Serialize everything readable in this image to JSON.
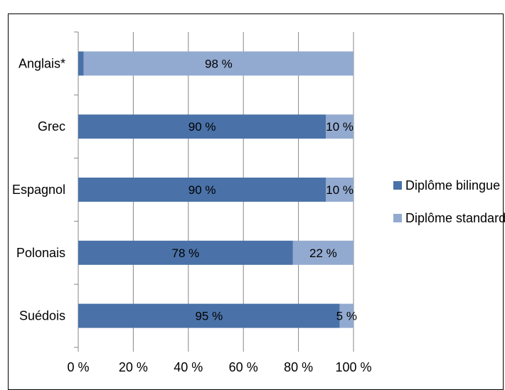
{
  "chart_data": {
    "type": "bar",
    "stacked": true,
    "orientation": "horizontal",
    "categories": [
      "Anglais*",
      "Grec",
      "Espagnol",
      "Polonais",
      "Suédois"
    ],
    "series": [
      {
        "name": "Diplôme bilingue",
        "color": "#4a72a8",
        "values": [
          2,
          90,
          90,
          78,
          95
        ],
        "labels": [
          "",
          "90 %",
          "90 %",
          "78 %",
          "95 %"
        ]
      },
      {
        "name": "Diplôme standard",
        "color": "#93aad0",
        "values": [
          98,
          10,
          10,
          22,
          5
        ],
        "labels": [
          "98 %",
          "10 %",
          "10 %",
          "22 %",
          "5 %"
        ]
      }
    ],
    "xlim": [
      0,
      100
    ],
    "xticks": [
      "0 %",
      "20 %",
      "40 %",
      "60 %",
      "80 %",
      "100 %"
    ],
    "grid": "vertical",
    "legend": "right"
  }
}
